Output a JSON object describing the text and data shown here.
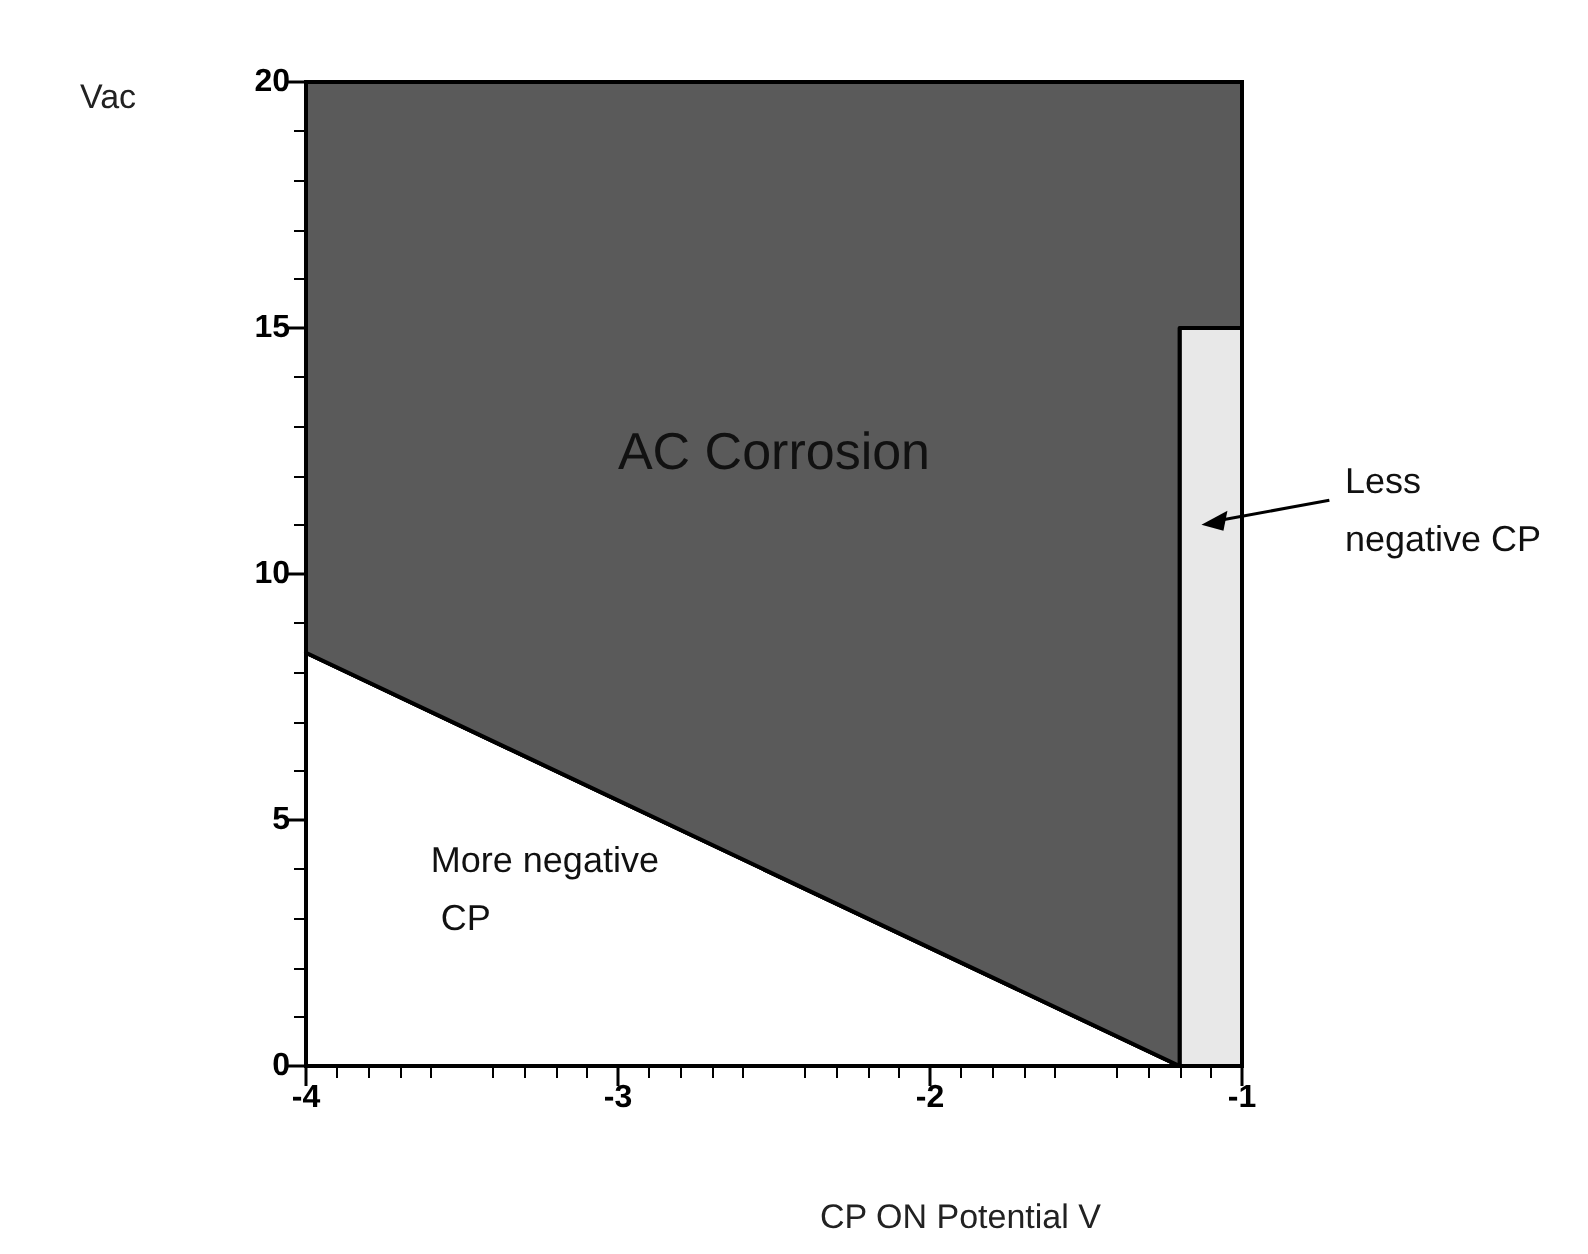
{
  "chart_data": {
    "type": "area",
    "xlabel": "CP ON Potential V",
    "ylabel": "Vac",
    "xlim": [
      -4,
      -1
    ],
    "xticks": [
      -4,
      -3,
      -2,
      -1
    ],
    "ylim": [
      0,
      20
    ],
    "yticks": [
      0,
      5,
      10,
      15,
      20
    ],
    "stacked": true,
    "x": [
      -4,
      -1.2,
      -1.2,
      -1
    ],
    "series": [
      {
        "values": [
          8.4,
          0,
          0,
          0
        ],
        "color": "#ffffff"
      },
      {
        "values": [
          0,
          0,
          15,
          15
        ],
        "color": "#e8e8e8"
      },
      {
        "values": [
          11.6,
          20,
          5,
          5
        ],
        "color": "#5a5a5a"
      }
    ],
    "annotations": [
      "AC Corrosion",
      "More negative CP",
      "Less negative CP"
    ],
    "line_style": "solid"
  }
}
